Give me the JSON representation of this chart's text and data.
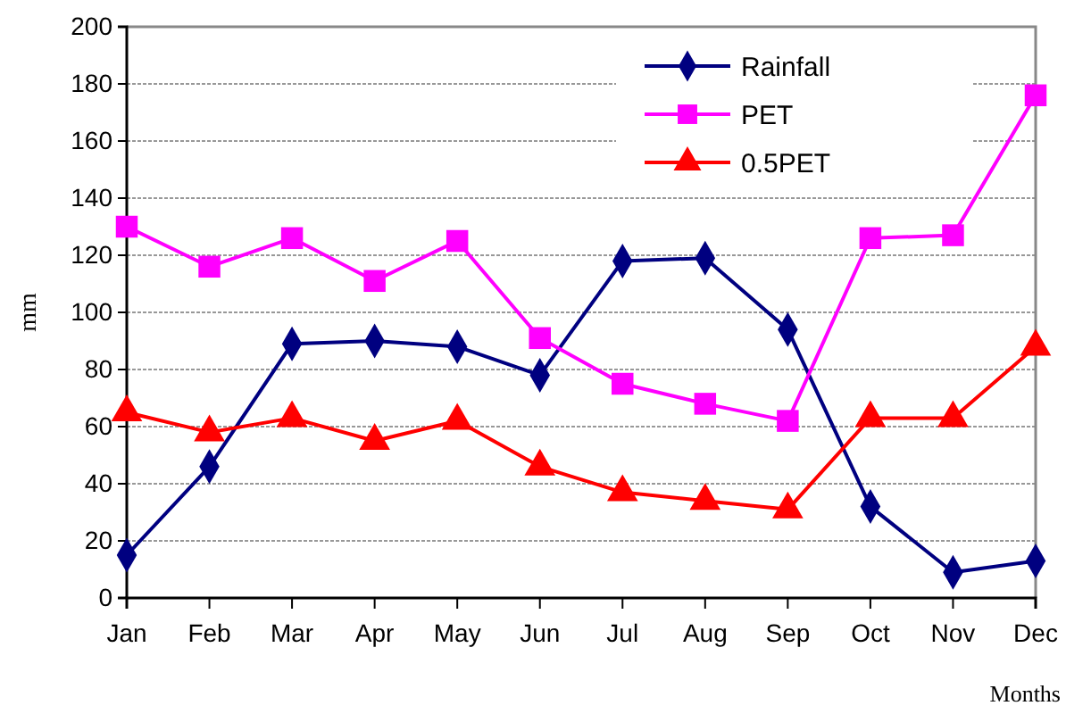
{
  "chart_data": {
    "type": "line",
    "xlabel": "Months",
    "ylabel": "mm",
    "categories": [
      "Jan",
      "Feb",
      "Mar",
      "Apr",
      "May",
      "Jun",
      "Jul",
      "Aug",
      "Sep",
      "Oct",
      "Nov",
      "Dec"
    ],
    "series": [
      {
        "name": "Rainfall",
        "color": "#000080",
        "marker": "diamond",
        "values": [
          15,
          46,
          89,
          90,
          88,
          78,
          118,
          119,
          94,
          32,
          9,
          13
        ]
      },
      {
        "name": "PET",
        "color": "#ff00ff",
        "marker": "square",
        "values": [
          130,
          116,
          126,
          111,
          125,
          91,
          75,
          68,
          62,
          126,
          127,
          176
        ]
      },
      {
        "name": "0.5PET",
        "color": "#ff0000",
        "marker": "triangle",
        "values": [
          65,
          58,
          63,
          55,
          62,
          46,
          37,
          34,
          31,
          63,
          63,
          88
        ]
      }
    ],
    "ylim": [
      0,
      200
    ],
    "yticks": [
      0,
      20,
      40,
      60,
      80,
      100,
      120,
      140,
      160,
      180,
      200
    ],
    "grid": "y",
    "legend": "top right",
    "line_style": "solid"
  }
}
